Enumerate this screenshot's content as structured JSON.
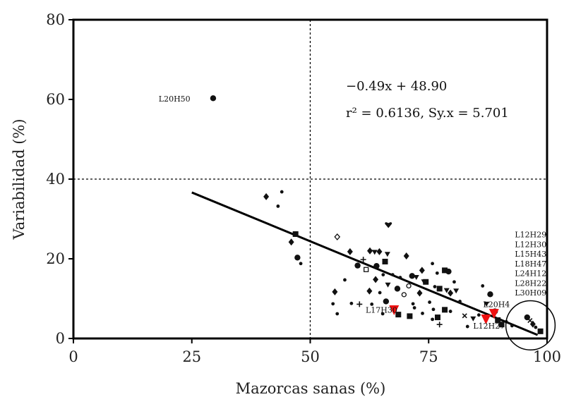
{
  "chart_data": {
    "type": "scatter",
    "xlabel": "Mazorcas sanas (%)",
    "ylabel": "Variabilidad (%)",
    "xlim": [
      0,
      100
    ],
    "ylim": [
      0,
      80
    ],
    "x_ticks": [
      "0",
      "25",
      "50",
      "75",
      "100"
    ],
    "y_ticks": [
      "0",
      "20",
      "40",
      "60",
      "80"
    ],
    "grid": false,
    "reference_lines": [
      {
        "axis": "x",
        "value": 50,
        "style": "dotted"
      },
      {
        "axis": "y",
        "value": 40,
        "style": "dotted"
      }
    ],
    "regression": {
      "equation": "−0.49x + 48.90",
      "stats": "r² = 0.6136, Sy.x = 5.701",
      "slope": -0.49,
      "intercept": 48.9,
      "x_range": [
        25,
        98
      ]
    },
    "points": [
      {
        "x": 29.5,
        "y": 60.3,
        "shape": "circle"
      },
      {
        "x": 40.7,
        "y": 35.6,
        "shape": "diamond"
      },
      {
        "x": 44.0,
        "y": 36.8,
        "shape": "dot"
      },
      {
        "x": 43.2,
        "y": 33.2,
        "shape": "dot"
      },
      {
        "x": 46.9,
        "y": 26.2,
        "shape": "square"
      },
      {
        "x": 46.0,
        "y": 24.2,
        "shape": "diamond"
      },
      {
        "x": 47.3,
        "y": 20.3,
        "shape": "circle"
      },
      {
        "x": 48.0,
        "y": 18.8,
        "shape": "dot"
      },
      {
        "x": 55.7,
        "y": 25.5,
        "shape": "diamond-open"
      },
      {
        "x": 58.4,
        "y": 21.8,
        "shape": "diamond"
      },
      {
        "x": 60.0,
        "y": 18.3,
        "shape": "circle"
      },
      {
        "x": 61.2,
        "y": 19.8,
        "shape": "plus"
      },
      {
        "x": 61.8,
        "y": 17.3,
        "shape": "square-open"
      },
      {
        "x": 62.6,
        "y": 22.0,
        "shape": "diamond"
      },
      {
        "x": 63.6,
        "y": 21.7,
        "shape": "triangle"
      },
      {
        "x": 64.0,
        "y": 18.2,
        "shape": "circle"
      },
      {
        "x": 64.6,
        "y": 21.8,
        "shape": "diamond"
      },
      {
        "x": 66.3,
        "y": 21.2,
        "shape": "triangle"
      },
      {
        "x": 66.5,
        "y": 28.6,
        "shape": "heart"
      },
      {
        "x": 65.8,
        "y": 19.3,
        "shape": "square"
      },
      {
        "x": 65.4,
        "y": 16.0,
        "shape": "dot"
      },
      {
        "x": 55.2,
        "y": 11.7,
        "shape": "diamond"
      },
      {
        "x": 54.8,
        "y": 8.7,
        "shape": "dot"
      },
      {
        "x": 55.7,
        "y": 6.2,
        "shape": "dot"
      },
      {
        "x": 57.3,
        "y": 14.7,
        "shape": "dot"
      },
      {
        "x": 58.7,
        "y": 8.8,
        "shape": "dot"
      },
      {
        "x": 60.4,
        "y": 8.6,
        "shape": "plus"
      },
      {
        "x": 62.5,
        "y": 11.9,
        "shape": "diamond"
      },
      {
        "x": 63.0,
        "y": 8.6,
        "shape": "dot"
      },
      {
        "x": 63.8,
        "y": 14.8,
        "shape": "diamond"
      },
      {
        "x": 64.7,
        "y": 11.5,
        "shape": "dot"
      },
      {
        "x": 65.3,
        "y": 6.2,
        "shape": "dot"
      },
      {
        "x": 66.0,
        "y": 9.3,
        "shape": "circle"
      },
      {
        "x": 66.4,
        "y": 13.5,
        "shape": "triangle"
      },
      {
        "x": 67.4,
        "y": 16.0,
        "shape": "dot"
      },
      {
        "x": 68.4,
        "y": 12.5,
        "shape": "circle"
      },
      {
        "x": 69.0,
        "y": 15.3,
        "shape": "dot"
      },
      {
        "x": 69.8,
        "y": 11.0,
        "shape": "circle-open"
      },
      {
        "x": 70.3,
        "y": 20.7,
        "shape": "diamond"
      },
      {
        "x": 70.8,
        "y": 13.2,
        "shape": "circle-open"
      },
      {
        "x": 71.5,
        "y": 15.7,
        "shape": "circle"
      },
      {
        "x": 71.7,
        "y": 8.7,
        "shape": "dot"
      },
      {
        "x": 72.0,
        "y": 7.7,
        "shape": "dot"
      },
      {
        "x": 72.4,
        "y": 15.4,
        "shape": "triangle"
      },
      {
        "x": 73.1,
        "y": 11.4,
        "shape": "diamond"
      },
      {
        "x": 73.6,
        "y": 17.1,
        "shape": "diamond"
      },
      {
        "x": 74.0,
        "y": 14.3,
        "shape": "triangle"
      },
      {
        "x": 74.4,
        "y": 14.2,
        "shape": "square"
      },
      {
        "x": 75.2,
        "y": 9.1,
        "shape": "dot"
      },
      {
        "x": 75.8,
        "y": 18.8,
        "shape": "dot"
      },
      {
        "x": 76.3,
        "y": 13.0,
        "shape": "dot"
      },
      {
        "x": 76.8,
        "y": 16.4,
        "shape": "dot"
      },
      {
        "x": 77.3,
        "y": 12.5,
        "shape": "square"
      },
      {
        "x": 78.4,
        "y": 17.1,
        "shape": "square"
      },
      {
        "x": 79.2,
        "y": 16.8,
        "shape": "circle"
      },
      {
        "x": 78.8,
        "y": 12.1,
        "shape": "triangle"
      },
      {
        "x": 79.6,
        "y": 11.4,
        "shape": "diamond"
      },
      {
        "x": 80.4,
        "y": 14.2,
        "shape": "dot"
      },
      {
        "x": 80.8,
        "y": 12.0,
        "shape": "triangle"
      },
      {
        "x": 81.6,
        "y": 9.3,
        "shape": "dot"
      },
      {
        "x": 78.4,
        "y": 7.2,
        "shape": "square"
      },
      {
        "x": 79.6,
        "y": 6.8,
        "shape": "dot"
      },
      {
        "x": 76.9,
        "y": 5.3,
        "shape": "square"
      },
      {
        "x": 77.3,
        "y": 3.5,
        "shape": "plus"
      },
      {
        "x": 76.0,
        "y": 7.3,
        "shape": "dot"
      },
      {
        "x": 73.7,
        "y": 6.3,
        "shape": "dot"
      },
      {
        "x": 75.8,
        "y": 4.8,
        "shape": "dot"
      },
      {
        "x": 71.0,
        "y": 5.6,
        "shape": "square"
      },
      {
        "x": 68.6,
        "y": 6.0,
        "shape": "square"
      },
      {
        "x": 82.6,
        "y": 5.7,
        "shape": "x"
      },
      {
        "x": 83.2,
        "y": 3.0,
        "shape": "dot"
      },
      {
        "x": 84.4,
        "y": 5.0,
        "shape": "triangle"
      },
      {
        "x": 85.6,
        "y": 5.9,
        "shape": "dot"
      },
      {
        "x": 86.4,
        "y": 13.2,
        "shape": "dot"
      },
      {
        "x": 87.2,
        "y": 8.7,
        "shape": "triangle"
      },
      {
        "x": 88.0,
        "y": 11.1,
        "shape": "circle"
      },
      {
        "x": 89.0,
        "y": 6.8,
        "shape": "circle"
      },
      {
        "x": 89.6,
        "y": 4.6,
        "shape": "square"
      },
      {
        "x": 90.4,
        "y": 3.5,
        "shape": "square"
      },
      {
        "x": 91.4,
        "y": 4.2,
        "shape": "dot"
      },
      {
        "x": 92.6,
        "y": 3.2,
        "shape": "dot"
      },
      {
        "x": 95.8,
        "y": 5.3,
        "shape": "circle"
      },
      {
        "x": 96.4,
        "y": 4.5,
        "shape": "x"
      },
      {
        "x": 97.0,
        "y": 3.6,
        "shape": "diamond"
      },
      {
        "x": 97.6,
        "y": 2.8,
        "shape": "dot"
      },
      {
        "x": 98.6,
        "y": 1.8,
        "shape": "square"
      },
      {
        "x": 67.7,
        "y": 6.9,
        "shape": "triangle-highlight"
      },
      {
        "x": 88.8,
        "y": 6.0,
        "shape": "triangle-highlight"
      },
      {
        "x": 87.1,
        "y": 4.6,
        "shape": "triangle-highlight"
      }
    ],
    "annotations": [
      {
        "text": "L20H50",
        "x": 18,
        "y": 60.2
      },
      {
        "text": "L17H30",
        "x": 61.7,
        "y": 7.2
      },
      {
        "text": "L20H4",
        "x": 86.5,
        "y": 8.6
      },
      {
        "text": "L12H27",
        "x": 84.4,
        "y": 3.2
      },
      {
        "text": "L12H29",
        "x": 93.2,
        "y": 26.1
      },
      {
        "text": "L12H30",
        "x": 93.2,
        "y": 23.6
      },
      {
        "text": "L15H43",
        "x": 93.2,
        "y": 21.2
      },
      {
        "text": "L18H47",
        "x": 93.2,
        "y": 18.8
      },
      {
        "text": "L24H12",
        "x": 93.2,
        "y": 16.4
      },
      {
        "text": "L28H22",
        "x": 93.2,
        "y": 13.9
      },
      {
        "text": "L30H09",
        "x": 93.2,
        "y": 11.5
      }
    ],
    "highlight_circle": {
      "cx": 96.5,
      "cy": 3.3,
      "r_x_units": 5.2
    },
    "colors": {
      "points": "#111111",
      "highlight": "#ee1111",
      "axis": "#000000"
    }
  }
}
